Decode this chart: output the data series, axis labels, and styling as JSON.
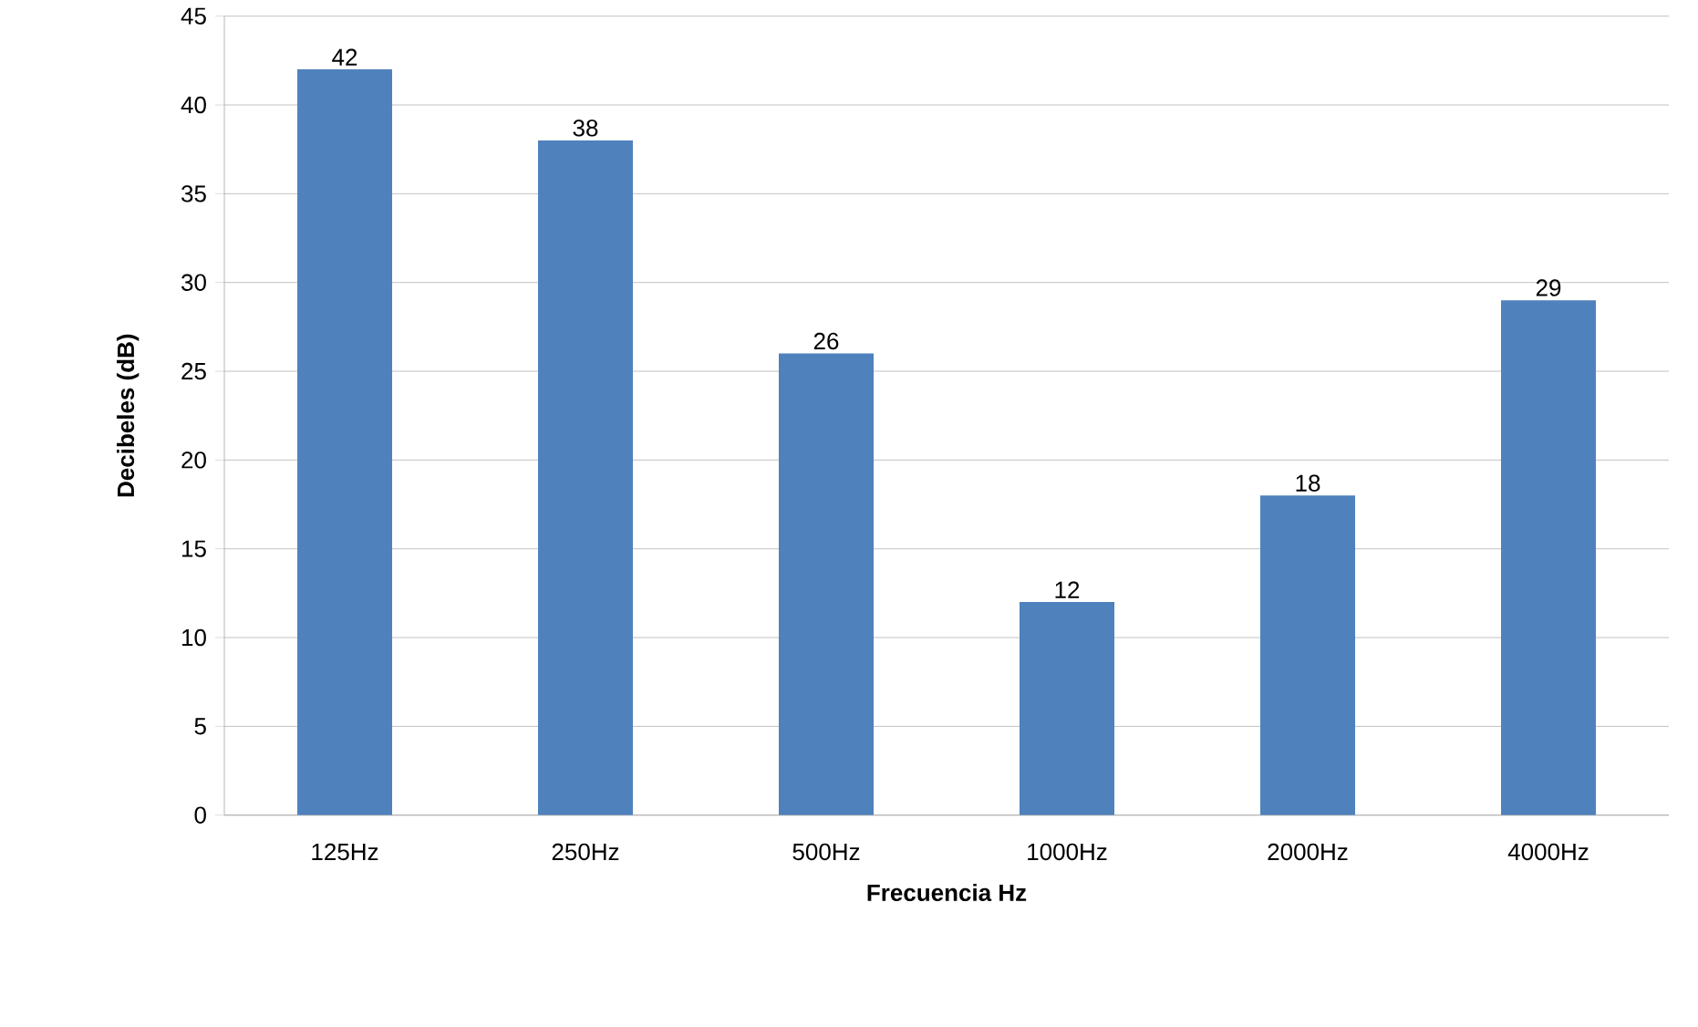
{
  "chart_data": {
    "type": "bar",
    "xlabel": "Frecuencia Hz",
    "ylabel": "Decibeles (dB)",
    "categories": [
      "125Hz",
      "250Hz",
      "500Hz",
      "1000Hz",
      "2000Hz",
      "4000Hz"
    ],
    "values": [
      42,
      38,
      26,
      12,
      18,
      29
    ],
    "color": "#4f81bd",
    "ylim": [
      0,
      45
    ],
    "yticks": [
      0,
      5,
      10,
      15,
      20,
      25,
      30,
      35,
      40,
      45
    ],
    "grid": "y",
    "data_labels": true
  }
}
